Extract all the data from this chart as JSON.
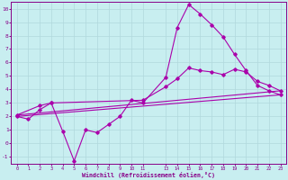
{
  "xlabel": "Windchill (Refroidissement éolien,°C)",
  "bg_color": "#c8eef0",
  "grid_color": "#b0d8dc",
  "line_color": "#aa00aa",
  "xlim": [
    -0.5,
    23.5
  ],
  "ylim": [
    -1.5,
    10.5
  ],
  "yticks": [
    -1,
    0,
    1,
    2,
    3,
    4,
    5,
    6,
    7,
    8,
    9,
    10
  ],
  "xtick_locs": [
    0,
    1,
    2,
    3,
    4,
    5,
    6,
    7,
    8,
    9,
    10,
    11,
    13,
    14,
    15,
    16,
    17,
    18,
    19,
    20,
    21,
    22,
    23
  ],
  "series": [
    {
      "x": [
        0,
        1,
        2,
        3,
        4,
        5,
        6,
        7,
        8,
        9,
        10,
        11,
        13,
        14,
        15,
        16,
        17,
        18,
        19,
        20,
        21,
        22,
        23
      ],
      "y": [
        2.0,
        1.8,
        2.5,
        3.0,
        0.9,
        -1.3,
        1.0,
        0.8,
        1.4,
        2.0,
        3.2,
        3.0,
        4.9,
        8.6,
        10.3,
        9.6,
        8.8,
        7.9,
        6.6,
        5.4,
        4.3,
        3.9,
        3.6
      ],
      "marker": true
    },
    {
      "x": [
        0,
        2,
        3,
        11,
        13,
        14,
        15,
        16,
        17,
        18,
        19,
        20,
        21,
        22,
        23
      ],
      "y": [
        2.1,
        2.8,
        3.0,
        3.2,
        4.2,
        4.8,
        5.6,
        5.4,
        5.3,
        5.1,
        5.5,
        5.3,
        4.6,
        4.3,
        3.9
      ],
      "marker": true
    },
    {
      "x": [
        0,
        23
      ],
      "y": [
        2.0,
        3.6
      ],
      "marker": false
    },
    {
      "x": [
        0,
        23
      ],
      "y": [
        2.1,
        3.9
      ],
      "marker": false
    }
  ]
}
